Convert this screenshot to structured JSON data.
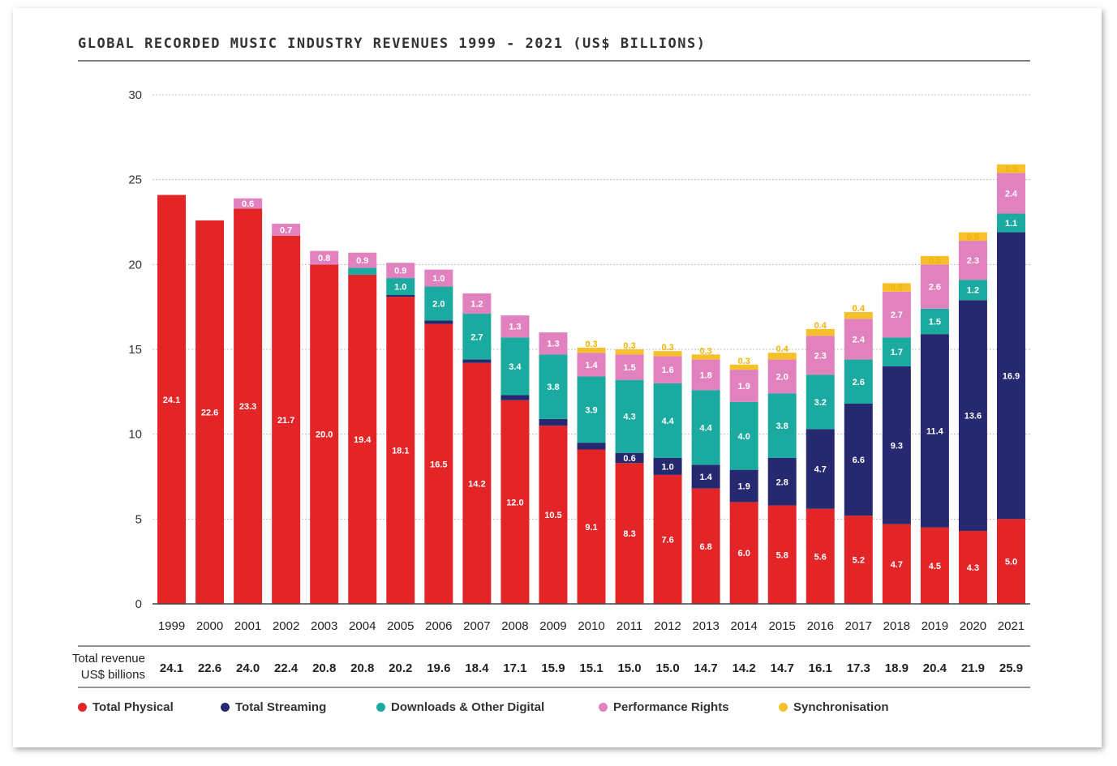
{
  "chart_data": {
    "type": "bar",
    "stacked": true,
    "title": "GLOBAL RECORDED MUSIC INDUSTRY REVENUES 1999 - 2021 (US$ BILLIONS)",
    "xlabel": "",
    "ylabel": "",
    "ylim": [
      0,
      30
    ],
    "yticks": [
      0,
      5,
      10,
      15,
      20,
      25,
      30
    ],
    "grid": true,
    "legend_position": "bottom",
    "categories": [
      "1999",
      "2000",
      "2001",
      "2002",
      "2003",
      "2004",
      "2005",
      "2006",
      "2007",
      "2008",
      "2009",
      "2010",
      "2011",
      "2012",
      "2013",
      "2014",
      "2015",
      "2016",
      "2017",
      "2018",
      "2019",
      "2020",
      "2021"
    ],
    "series": [
      {
        "name": "Total Physical",
        "color": "#e32528",
        "values": [
          24.1,
          22.6,
          23.3,
          21.7,
          20.0,
          19.4,
          18.1,
          16.5,
          14.2,
          12.0,
          10.5,
          9.1,
          8.3,
          7.6,
          6.8,
          6.0,
          5.8,
          5.6,
          5.2,
          4.7,
          4.5,
          4.3,
          5.0
        ]
      },
      {
        "name": "Total Streaming",
        "color": "#272970",
        "values": [
          null,
          null,
          null,
          null,
          null,
          null,
          0.1,
          0.2,
          0.2,
          0.3,
          0.4,
          0.4,
          0.6,
          1.0,
          1.4,
          1.9,
          2.8,
          4.7,
          6.6,
          9.3,
          11.4,
          13.6,
          16.9
        ]
      },
      {
        "name": "Downloads & Other Digital",
        "color": "#1aaa9f",
        "values": [
          null,
          null,
          null,
          null,
          null,
          0.4,
          1.0,
          2.0,
          2.7,
          3.4,
          3.8,
          3.9,
          4.3,
          4.4,
          4.4,
          4.0,
          3.8,
          3.2,
          2.6,
          1.7,
          1.5,
          1.2,
          1.1
        ]
      },
      {
        "name": "Performance Rights",
        "color": "#e181bd",
        "values": [
          null,
          null,
          0.6,
          0.7,
          0.8,
          0.9,
          0.9,
          1.0,
          1.2,
          1.3,
          1.3,
          1.4,
          1.5,
          1.6,
          1.8,
          1.9,
          2.0,
          2.3,
          2.4,
          2.7,
          2.6,
          2.3,
          2.4
        ]
      },
      {
        "name": "Synchronisation",
        "color": "#f6c02b",
        "values": [
          null,
          null,
          null,
          null,
          null,
          null,
          null,
          null,
          null,
          null,
          null,
          0.3,
          0.3,
          0.3,
          0.3,
          0.3,
          0.4,
          0.4,
          0.4,
          0.5,
          0.5,
          0.5,
          0.5
        ]
      }
    ],
    "totals_label": "Total revenue US$ billions",
    "totals_label_lines": [
      "Total revenue",
      "US$ billions"
    ],
    "totals": [
      "24.1",
      "22.6",
      "24.0",
      "22.4",
      "20.8",
      "20.8",
      "20.2",
      "19.6",
      "18.4",
      "17.1",
      "15.9",
      "15.1",
      "15.0",
      "15.0",
      "14.7",
      "14.2",
      "14.7",
      "16.1",
      "17.3",
      "18.9",
      "20.4",
      "21.9",
      "25.9"
    ]
  }
}
